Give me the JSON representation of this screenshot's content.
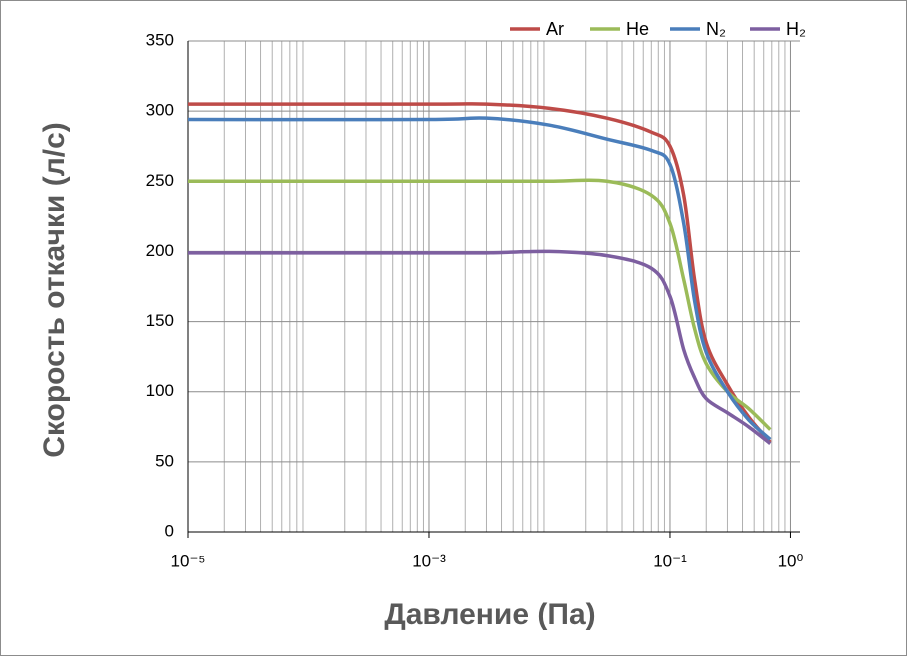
{
  "chart_data": {
    "type": "line",
    "x_label": "Давление (Па)",
    "y_label": "Скорость откачки (л/с)",
    "log_x": true,
    "grid": true,
    "legend_position": "top-right",
    "xlim": [
      1e-05,
      1.2
    ],
    "ylim": [
      0,
      350
    ],
    "xticks": [
      {
        "value": 1e-05,
        "label": "10⁻⁵"
      },
      {
        "value": 0.001,
        "label": "10⁻³"
      },
      {
        "value": 0.1,
        "label": "10⁻¹"
      },
      {
        "value": 1,
        "label": "10⁰"
      }
    ],
    "yticks": [
      0,
      50,
      100,
      150,
      200,
      250,
      300,
      350
    ],
    "x": [
      1e-05,
      0.001,
      0.003,
      0.01,
      0.03,
      0.07,
      0.1,
      0.13,
      0.16,
      0.2,
      0.3,
      0.45,
      0.68
    ],
    "series": [
      {
        "name": "Ar",
        "color": "#be4b48",
        "values": [
          305,
          305,
          305,
          302,
          295,
          285,
          275,
          240,
          180,
          135,
          105,
          82,
          64
        ]
      },
      {
        "name": "He",
        "color": "#9bbb59",
        "values": [
          250,
          250,
          250,
          250,
          250,
          240,
          220,
          180,
          145,
          120,
          100,
          88,
          73
        ]
      },
      {
        "name": "N₂",
        "color": "#4a7ebb",
        "values": [
          294,
          294,
          295,
          290,
          280,
          272,
          262,
          220,
          165,
          128,
          100,
          80,
          66
        ]
      },
      {
        "name": "H₂",
        "color": "#7d5fa0",
        "values": [
          199,
          199,
          199,
          200,
          197,
          188,
          168,
          130,
          110,
          95,
          85,
          75,
          63
        ]
      }
    ]
  }
}
